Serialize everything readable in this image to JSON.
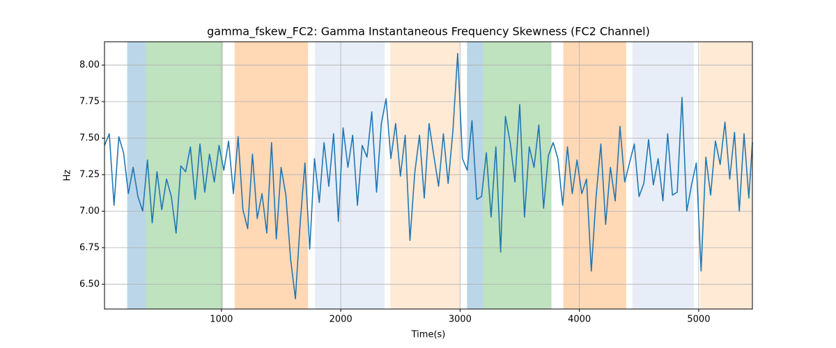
{
  "chart_data": {
    "type": "line",
    "title": "gamma_fskew_FC2: Gamma Instantaneous Frequency Skewness (FC2 Channel)",
    "x_label": "Time(s)",
    "y_label": "Hz",
    "color": "#1f77b4",
    "grid": true,
    "xlim": [
      20,
      5450
    ],
    "ylim": [
      6.33,
      8.16
    ],
    "xticks": [
      1000,
      2000,
      3000,
      4000,
      5000
    ],
    "yticks": [
      {
        "value": 6.5,
        "label": "6.50"
      },
      {
        "value": 6.75,
        "label": "6.75"
      },
      {
        "value": 7.0,
        "label": "7.00"
      },
      {
        "value": 7.25,
        "label": "7.25"
      },
      {
        "value": 7.5,
        "label": "7.50"
      },
      {
        "value": 7.75,
        "label": "7.75"
      },
      {
        "value": 8.0,
        "label": "8.00"
      }
    ],
    "spans": [
      {
        "start": 210,
        "end": 368,
        "color": "#1f77b4"
      },
      {
        "start": 368,
        "end": 1012,
        "color": "#2ca02c"
      },
      {
        "start": 1111,
        "end": 1725,
        "color": "#ff7f0e"
      },
      {
        "start": 1784,
        "end": 2368,
        "color": "#aec7e8"
      },
      {
        "start": 2415,
        "end": 3000,
        "color": "#ffbb78"
      },
      {
        "start": 3058,
        "end": 3193,
        "color": "#1f77b4"
      },
      {
        "start": 3193,
        "end": 3766,
        "color": "#2ca02c"
      },
      {
        "start": 3865,
        "end": 4392,
        "color": "#ff7f0e"
      },
      {
        "start": 4444,
        "end": 4959,
        "color": "#aec7e8"
      },
      {
        "start": 5012,
        "end": 5450,
        "color": "#ffbb78"
      }
    ],
    "x": [
      20,
      60,
      100,
      140,
      180,
      220,
      260,
      300,
      340,
      380,
      420,
      460,
      500,
      540,
      580,
      620,
      660,
      700,
      740,
      780,
      820,
      860,
      900,
      940,
      980,
      1020,
      1060,
      1100,
      1140,
      1180,
      1220,
      1260,
      1300,
      1340,
      1380,
      1420,
      1460,
      1500,
      1540,
      1580,
      1620,
      1660,
      1700,
      1740,
      1780,
      1820,
      1860,
      1900,
      1940,
      1980,
      2020,
      2060,
      2100,
      2140,
      2180,
      2220,
      2260,
      2300,
      2340,
      2380,
      2420,
      2460,
      2500,
      2540,
      2580,
      2620,
      2660,
      2700,
      2740,
      2780,
      2820,
      2860,
      2900,
      2940,
      2980,
      3020,
      3060,
      3100,
      3140,
      3180,
      3220,
      3260,
      3300,
      3340,
      3380,
      3420,
      3460,
      3500,
      3540,
      3580,
      3620,
      3660,
      3700,
      3740,
      3780,
      3820,
      3860,
      3900,
      3940,
      3980,
      4020,
      4060,
      4100,
      4140,
      4180,
      4220,
      4260,
      4300,
      4340,
      4380,
      4420,
      4460,
      4500,
      4540,
      4580,
      4620,
      4660,
      4700,
      4740,
      4780,
      4820,
      4860,
      4900,
      4940,
      4980,
      5020,
      5060,
      5100,
      5140,
      5180,
      5220,
      5260,
      5300,
      5340,
      5380,
      5420,
      5450
    ],
    "values": [
      7.45,
      7.53,
      7.04,
      7.51,
      7.4,
      7.12,
      7.3,
      7.1,
      7.0,
      7.35,
      6.92,
      7.27,
      7.01,
      7.22,
      7.1,
      6.85,
      7.31,
      7.27,
      7.44,
      7.08,
      7.46,
      7.13,
      7.39,
      7.2,
      7.45,
      7.28,
      7.48,
      7.12,
      7.51,
      7.01,
      6.88,
      7.39,
      6.95,
      7.12,
      6.85,
      7.47,
      6.81,
      7.3,
      7.11,
      6.67,
      6.4,
      6.92,
      7.33,
      6.74,
      7.36,
      7.06,
      7.47,
      7.17,
      7.53,
      6.93,
      7.57,
      7.3,
      7.52,
      7.04,
      7.45,
      7.37,
      7.68,
      7.13,
      7.6,
      7.77,
      7.36,
      7.6,
      7.24,
      7.52,
      6.8,
      7.26,
      7.52,
      7.09,
      7.6,
      7.38,
      7.17,
      7.53,
      7.19,
      7.55,
      8.08,
      7.36,
      7.28,
      7.62,
      7.08,
      7.1,
      7.4,
      6.96,
      7.44,
      6.72,
      7.65,
      7.47,
      7.2,
      7.73,
      6.96,
      7.44,
      7.3,
      7.59,
      7.02,
      7.38,
      7.47,
      7.36,
      7.04,
      7.44,
      7.12,
      7.35,
      7.12,
      7.22,
      6.59,
      7.1,
      7.46,
      6.91,
      7.3,
      7.07,
      7.58,
      7.2,
      7.33,
      7.46,
      7.1,
      7.19,
      7.49,
      7.18,
      7.36,
      7.07,
      7.53,
      7.11,
      7.13,
      7.78,
      7.0,
      7.18,
      7.33,
      6.59,
      7.37,
      7.11,
      7.48,
      7.32,
      7.61,
      7.22,
      7.54,
      7.0,
      7.53,
      7.09,
      7.47
    ]
  }
}
